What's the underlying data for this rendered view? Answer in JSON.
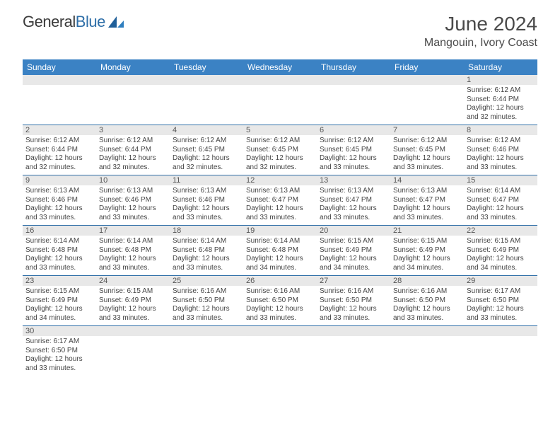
{
  "brand": {
    "part1": "General",
    "part2": "Blue"
  },
  "title": "June 2024",
  "location": "Mangouin, Ivory Coast",
  "colors": {
    "header_bg": "#3b82c4",
    "header_text": "#ffffff",
    "daynum_bg": "#e8e8e8",
    "cell_border": "#2f6fa8",
    "body_text": "#444444",
    "brand_blue": "#2f6fa8",
    "brand_dark": "#3a3a3a"
  },
  "day_headers": [
    "Sunday",
    "Monday",
    "Tuesday",
    "Wednesday",
    "Thursday",
    "Friday",
    "Saturday"
  ],
  "weeks": [
    [
      {
        "n": ""
      },
      {
        "n": ""
      },
      {
        "n": ""
      },
      {
        "n": ""
      },
      {
        "n": ""
      },
      {
        "n": ""
      },
      {
        "n": "1",
        "sr": "6:12 AM",
        "ss": "6:44 PM",
        "dl": "12 hours and 32 minutes."
      }
    ],
    [
      {
        "n": "2",
        "sr": "6:12 AM",
        "ss": "6:44 PM",
        "dl": "12 hours and 32 minutes."
      },
      {
        "n": "3",
        "sr": "6:12 AM",
        "ss": "6:44 PM",
        "dl": "12 hours and 32 minutes."
      },
      {
        "n": "4",
        "sr": "6:12 AM",
        "ss": "6:45 PM",
        "dl": "12 hours and 32 minutes."
      },
      {
        "n": "5",
        "sr": "6:12 AM",
        "ss": "6:45 PM",
        "dl": "12 hours and 32 minutes."
      },
      {
        "n": "6",
        "sr": "6:12 AM",
        "ss": "6:45 PM",
        "dl": "12 hours and 33 minutes."
      },
      {
        "n": "7",
        "sr": "6:12 AM",
        "ss": "6:45 PM",
        "dl": "12 hours and 33 minutes."
      },
      {
        "n": "8",
        "sr": "6:12 AM",
        "ss": "6:46 PM",
        "dl": "12 hours and 33 minutes."
      }
    ],
    [
      {
        "n": "9",
        "sr": "6:13 AM",
        "ss": "6:46 PM",
        "dl": "12 hours and 33 minutes."
      },
      {
        "n": "10",
        "sr": "6:13 AM",
        "ss": "6:46 PM",
        "dl": "12 hours and 33 minutes."
      },
      {
        "n": "11",
        "sr": "6:13 AM",
        "ss": "6:46 PM",
        "dl": "12 hours and 33 minutes."
      },
      {
        "n": "12",
        "sr": "6:13 AM",
        "ss": "6:47 PM",
        "dl": "12 hours and 33 minutes."
      },
      {
        "n": "13",
        "sr": "6:13 AM",
        "ss": "6:47 PM",
        "dl": "12 hours and 33 minutes."
      },
      {
        "n": "14",
        "sr": "6:13 AM",
        "ss": "6:47 PM",
        "dl": "12 hours and 33 minutes."
      },
      {
        "n": "15",
        "sr": "6:14 AM",
        "ss": "6:47 PM",
        "dl": "12 hours and 33 minutes."
      }
    ],
    [
      {
        "n": "16",
        "sr": "6:14 AM",
        "ss": "6:48 PM",
        "dl": "12 hours and 33 minutes."
      },
      {
        "n": "17",
        "sr": "6:14 AM",
        "ss": "6:48 PM",
        "dl": "12 hours and 33 minutes."
      },
      {
        "n": "18",
        "sr": "6:14 AM",
        "ss": "6:48 PM",
        "dl": "12 hours and 33 minutes."
      },
      {
        "n": "19",
        "sr": "6:14 AM",
        "ss": "6:48 PM",
        "dl": "12 hours and 34 minutes."
      },
      {
        "n": "20",
        "sr": "6:15 AM",
        "ss": "6:49 PM",
        "dl": "12 hours and 34 minutes."
      },
      {
        "n": "21",
        "sr": "6:15 AM",
        "ss": "6:49 PM",
        "dl": "12 hours and 34 minutes."
      },
      {
        "n": "22",
        "sr": "6:15 AM",
        "ss": "6:49 PM",
        "dl": "12 hours and 34 minutes."
      }
    ],
    [
      {
        "n": "23",
        "sr": "6:15 AM",
        "ss": "6:49 PM",
        "dl": "12 hours and 34 minutes."
      },
      {
        "n": "24",
        "sr": "6:15 AM",
        "ss": "6:49 PM",
        "dl": "12 hours and 33 minutes."
      },
      {
        "n": "25",
        "sr": "6:16 AM",
        "ss": "6:50 PM",
        "dl": "12 hours and 33 minutes."
      },
      {
        "n": "26",
        "sr": "6:16 AM",
        "ss": "6:50 PM",
        "dl": "12 hours and 33 minutes."
      },
      {
        "n": "27",
        "sr": "6:16 AM",
        "ss": "6:50 PM",
        "dl": "12 hours and 33 minutes."
      },
      {
        "n": "28",
        "sr": "6:16 AM",
        "ss": "6:50 PM",
        "dl": "12 hours and 33 minutes."
      },
      {
        "n": "29",
        "sr": "6:17 AM",
        "ss": "6:50 PM",
        "dl": "12 hours and 33 minutes."
      }
    ],
    [
      {
        "n": "30",
        "sr": "6:17 AM",
        "ss": "6:50 PM",
        "dl": "12 hours and 33 minutes."
      },
      {
        "n": ""
      },
      {
        "n": ""
      },
      {
        "n": ""
      },
      {
        "n": ""
      },
      {
        "n": ""
      },
      {
        "n": ""
      }
    ]
  ],
  "labels": {
    "sunrise": "Sunrise:",
    "sunset": "Sunset:",
    "daylight": "Daylight:"
  }
}
